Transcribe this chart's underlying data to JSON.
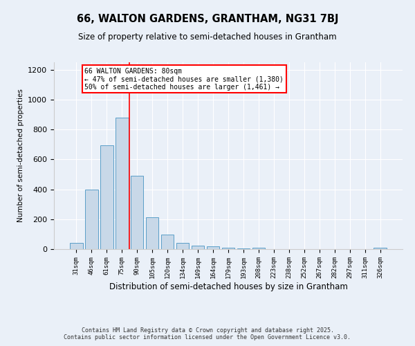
{
  "title1": "66, WALTON GARDENS, GRANTHAM, NG31 7BJ",
  "title2": "Size of property relative to semi-detached houses in Grantham",
  "xlabel": "Distribution of semi-detached houses by size in Grantham",
  "ylabel": "Number of semi-detached properties",
  "categories": [
    "31sqm",
    "46sqm",
    "61sqm",
    "75sqm",
    "90sqm",
    "105sqm",
    "120sqm",
    "134sqm",
    "149sqm",
    "164sqm",
    "179sqm",
    "193sqm",
    "208sqm",
    "223sqm",
    "238sqm",
    "252sqm",
    "267sqm",
    "282sqm",
    "297sqm",
    "311sqm",
    "326sqm"
  ],
  "values": [
    40,
    400,
    695,
    880,
    490,
    215,
    95,
    42,
    25,
    20,
    10,
    3,
    10,
    2,
    1,
    1,
    1,
    1,
    0,
    1,
    10
  ],
  "bar_color": "#c8d8e8",
  "bar_edge_color": "#5a9ec8",
  "vline_x": 3.5,
  "vline_color": "red",
  "annotation_text": "66 WALTON GARDENS: 80sqm\n← 47% of semi-detached houses are smaller (1,380)\n50% of semi-detached houses are larger (1,461) →",
  "annotation_box_color": "white",
  "annotation_box_edge": "red",
  "ylim": [
    0,
    1250
  ],
  "yticks": [
    0,
    200,
    400,
    600,
    800,
    1000,
    1200
  ],
  "background_color": "#eaf0f8",
  "footer": "Contains HM Land Registry data © Crown copyright and database right 2025.\nContains public sector information licensed under the Open Government Licence v3.0."
}
